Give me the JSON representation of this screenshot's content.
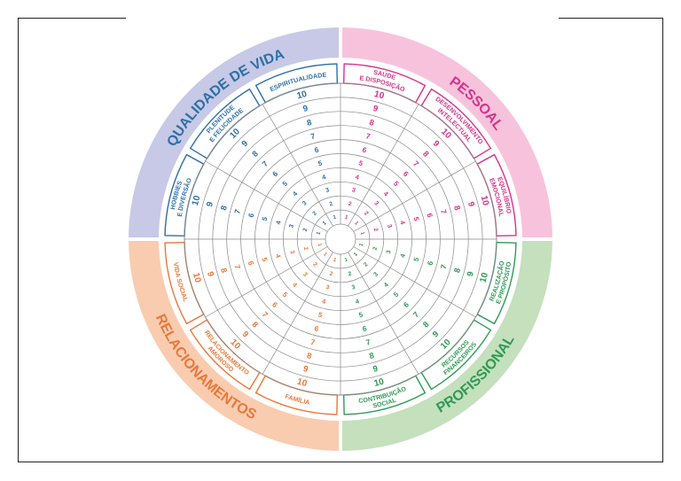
{
  "colors": {
    "qualidade": "#2e6fa6",
    "qualidade_band": "#c7c9e6",
    "pessoal": "#d6338a",
    "pessoal_band": "#f7c3dc",
    "profissional": "#2f9a55",
    "profissional_band": "#c4e0bd",
    "relacionamentos": "#e9783a",
    "relacionamentos_band": "#f9ccb0",
    "grid": "#8a8a8a"
  },
  "quadrants": [
    {
      "key": "qualidade",
      "title": "QUALIDADE DE VIDA"
    },
    {
      "key": "pessoal",
      "title": "PESSOAL"
    },
    {
      "key": "profissional",
      "title": "PROFISSIONAL"
    },
    {
      "key": "relacionamentos",
      "title": "RELACIONAMENTOS"
    }
  ],
  "sectors": [
    {
      "quadrant": "qualidade",
      "label": [
        "ESPIRITUALIDADE"
      ]
    },
    {
      "quadrant": "pessoal",
      "label": [
        "SAÚDE",
        "E DISPOSIÇÃO"
      ]
    },
    {
      "quadrant": "pessoal",
      "label": [
        "DESENVOLVIMENTO",
        "INTELECTUAL"
      ]
    },
    {
      "quadrant": "pessoal",
      "label": [
        "EQUILÍBRIO",
        "EMOCIONAL"
      ]
    },
    {
      "quadrant": "profissional",
      "label": [
        "REALIZAÇÃO",
        "E PROPÓSITO"
      ]
    },
    {
      "quadrant": "profissional",
      "label": [
        "RECURSOS",
        "FINANCEIROS"
      ]
    },
    {
      "quadrant": "profissional",
      "label": [
        "CONTRIBUIÇÃO",
        "SOCIAL"
      ]
    },
    {
      "quadrant": "relacionamentos",
      "label": [
        "FAMÍLIA"
      ]
    },
    {
      "quadrant": "relacionamentos",
      "label": [
        "RELACIONAMENTO",
        "AMOROSO"
      ]
    },
    {
      "quadrant": "relacionamentos",
      "label": [
        "VIDA SOCIAL"
      ]
    },
    {
      "quadrant": "qualidade",
      "label": [
        "HOBBIES",
        "E DIVERSÃO"
      ]
    },
    {
      "quadrant": "qualidade",
      "label": [
        "PLENITUDE",
        "E FELICIDADE"
      ]
    }
  ],
  "scale": [
    "1",
    "2",
    "3",
    "4",
    "5",
    "6",
    "7",
    "8",
    "9",
    "10"
  ]
}
